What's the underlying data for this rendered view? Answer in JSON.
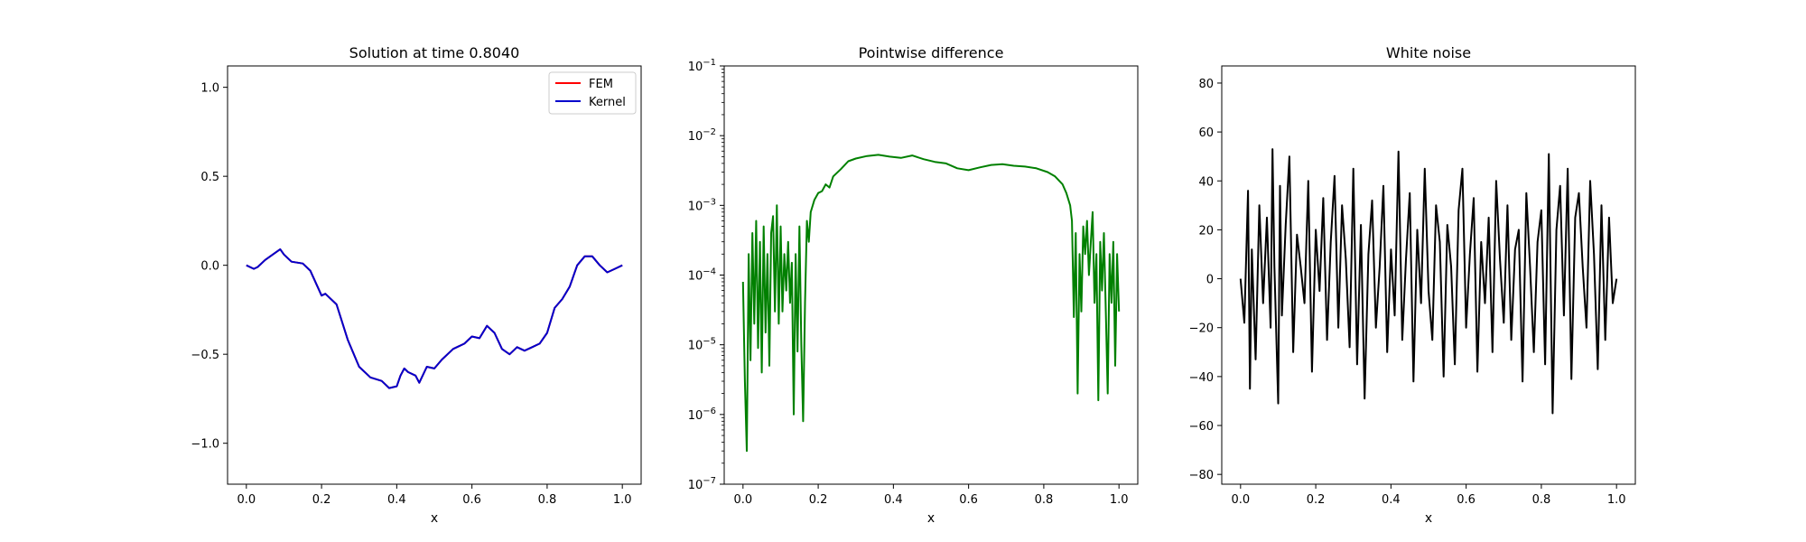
{
  "colors": {
    "fem": "#ff0000",
    "kernel": "#0000cc",
    "difference": "#008000",
    "noise": "#000000"
  },
  "chart_data": [
    {
      "type": "line",
      "title": "Solution at time 0.8040",
      "xlabel": "x",
      "ylabel": "",
      "xlim": [
        -0.05,
        1.05
      ],
      "ylim": [
        -1.23,
        1.12
      ],
      "xticks": [
        0.0,
        0.2,
        0.4,
        0.6,
        0.8,
        1.0
      ],
      "xtick_labels": [
        "0.0",
        "0.2",
        "0.4",
        "0.6",
        "0.8",
        "1.0"
      ],
      "yticks": [
        -1.0,
        -0.5,
        0.0,
        0.5,
        1.0
      ],
      "ytick_labels": [
        "−1.0",
        "−0.5",
        "0.0",
        "0.5",
        "1.0"
      ],
      "legend": {
        "location": "upper right",
        "entries": [
          "FEM",
          "Kernel"
        ]
      },
      "x": [
        0.0,
        0.02,
        0.03,
        0.05,
        0.07,
        0.09,
        0.1,
        0.12,
        0.15,
        0.17,
        0.2,
        0.21,
        0.24,
        0.27,
        0.3,
        0.33,
        0.36,
        0.38,
        0.4,
        0.41,
        0.42,
        0.43,
        0.45,
        0.46,
        0.48,
        0.5,
        0.52,
        0.55,
        0.58,
        0.6,
        0.62,
        0.64,
        0.66,
        0.68,
        0.7,
        0.72,
        0.74,
        0.76,
        0.78,
        0.8,
        0.82,
        0.84,
        0.86,
        0.88,
        0.9,
        0.92,
        0.94,
        0.96,
        0.98,
        1.0
      ],
      "series": [
        {
          "name": "FEM",
          "values": [
            0.0,
            -0.02,
            -0.01,
            0.03,
            0.06,
            0.09,
            0.06,
            0.02,
            0.01,
            -0.03,
            -0.17,
            -0.16,
            -0.22,
            -0.42,
            -0.57,
            -0.63,
            -0.65,
            -0.69,
            -0.68,
            -0.62,
            -0.58,
            -0.6,
            -0.62,
            -0.66,
            -0.57,
            -0.58,
            -0.53,
            -0.47,
            -0.44,
            -0.4,
            -0.41,
            -0.34,
            -0.38,
            -0.47,
            -0.5,
            -0.46,
            -0.48,
            -0.46,
            -0.44,
            -0.38,
            -0.24,
            -0.19,
            -0.12,
            0.0,
            0.05,
            0.05,
            0.0,
            -0.04,
            -0.02,
            0.0
          ]
        },
        {
          "name": "Kernel",
          "values": [
            0.0,
            -0.02,
            -0.01,
            0.03,
            0.06,
            0.09,
            0.06,
            0.02,
            0.01,
            -0.03,
            -0.17,
            -0.16,
            -0.22,
            -0.42,
            -0.57,
            -0.63,
            -0.65,
            -0.69,
            -0.68,
            -0.62,
            -0.58,
            -0.6,
            -0.62,
            -0.66,
            -0.57,
            -0.58,
            -0.53,
            -0.47,
            -0.44,
            -0.4,
            -0.41,
            -0.34,
            -0.38,
            -0.47,
            -0.5,
            -0.46,
            -0.48,
            -0.46,
            -0.44,
            -0.38,
            -0.24,
            -0.19,
            -0.12,
            0.0,
            0.05,
            0.05,
            0.0,
            -0.04,
            -0.02,
            0.0
          ]
        }
      ]
    },
    {
      "type": "line",
      "title": "Pointwise difference",
      "xlabel": "x",
      "ylabel": "",
      "yscale": "log",
      "xlim": [
        -0.05,
        1.05
      ],
      "ylim": [
        1e-07,
        0.1
      ],
      "xticks": [
        0.0,
        0.2,
        0.4,
        0.6,
        0.8,
        1.0
      ],
      "xtick_labels": [
        "0.0",
        "0.2",
        "0.4",
        "0.6",
        "0.8",
        "1.0"
      ],
      "yticks": [
        1e-07,
        1e-06,
        1e-05,
        0.0001,
        0.001,
        0.01,
        0.1
      ],
      "ytick_bases": [
        "10",
        "10",
        "10",
        "10",
        "10",
        "10",
        "10"
      ],
      "ytick_exps": [
        "−7",
        "−6",
        "−5",
        "−4",
        "−3",
        "−2",
        "−1"
      ],
      "series": [
        {
          "x": [
            0.0,
            0.005,
            0.01,
            0.015,
            0.02,
            0.025,
            0.03,
            0.035,
            0.04,
            0.045,
            0.05,
            0.055,
            0.06,
            0.065,
            0.07,
            0.075,
            0.08,
            0.085,
            0.09,
            0.095,
            0.1,
            0.105,
            0.11,
            0.115,
            0.12,
            0.125,
            0.13,
            0.135,
            0.14,
            0.145,
            0.15,
            0.155,
            0.16,
            0.165,
            0.17,
            0.175,
            0.18,
            0.19,
            0.2,
            0.21,
            0.22,
            0.23,
            0.24,
            0.26,
            0.28,
            0.3,
            0.33,
            0.36,
            0.39,
            0.42,
            0.45,
            0.48,
            0.51,
            0.54,
            0.57,
            0.6,
            0.63,
            0.66,
            0.69,
            0.72,
            0.75,
            0.78,
            0.81,
            0.83,
            0.85,
            0.86,
            0.87,
            0.875,
            0.88,
            0.885,
            0.89,
            0.895,
            0.9,
            0.905,
            0.91,
            0.915,
            0.92,
            0.925,
            0.93,
            0.935,
            0.94,
            0.945,
            0.95,
            0.955,
            0.96,
            0.965,
            0.97,
            0.975,
            0.98,
            0.985,
            0.99,
            0.995,
            1.0
          ],
          "values": [
            8e-05,
            3e-06,
            3e-07,
            0.0002,
            6e-06,
            0.0004,
            2e-05,
            0.0006,
            9e-06,
            0.0003,
            4e-06,
            0.0005,
            1.5e-05,
            0.0002,
            5e-06,
            0.0004,
            0.0007,
            3e-05,
            0.001,
            2e-05,
            0.0005,
            3e-05,
            0.0002,
            6e-05,
            0.0003,
            4e-05,
            0.00015,
            1e-06,
            0.0002,
            8e-06,
            0.0005,
            1e-05,
            8e-07,
            4e-05,
            0.0006,
            0.0003,
            0.0008,
            0.0012,
            0.0015,
            0.0016,
            0.002,
            0.0018,
            0.0026,
            0.0033,
            0.0043,
            0.0047,
            0.0051,
            0.0053,
            0.005,
            0.0048,
            0.0052,
            0.0046,
            0.0042,
            0.004,
            0.0034,
            0.0032,
            0.0035,
            0.0038,
            0.0039,
            0.0037,
            0.0036,
            0.0034,
            0.003,
            0.0026,
            0.002,
            0.0015,
            0.001,
            0.0006,
            2.5e-05,
            0.0004,
            2e-06,
            0.0002,
            3e-05,
            0.0005,
            0.0002,
            0.0006,
            0.0001,
            0.0003,
            0.0008,
            4e-05,
            0.0002,
            1.6e-06,
            0.0003,
            6e-05,
            0.0004,
            3e-05,
            2e-06,
            0.0002,
            4e-05,
            0.0003,
            5e-06,
            0.0002,
            3e-05
          ]
        }
      ]
    },
    {
      "type": "line",
      "title": "White noise",
      "xlabel": "x",
      "ylabel": "",
      "xlim": [
        -0.05,
        1.05
      ],
      "ylim": [
        -84,
        87
      ],
      "xticks": [
        0.0,
        0.2,
        0.4,
        0.6,
        0.8,
        1.0
      ],
      "xtick_labels": [
        "0.0",
        "0.2",
        "0.4",
        "0.6",
        "0.8",
        "1.0"
      ],
      "yticks": [
        -80,
        -60,
        -40,
        -20,
        0,
        20,
        40,
        60,
        80
      ],
      "ytick_labels": [
        "−80",
        "−60",
        "−40",
        "−20",
        "0",
        "20",
        "40",
        "60",
        "80"
      ],
      "series": [
        {
          "x": [
            0.0,
            0.01,
            0.02,
            0.025,
            0.03,
            0.04,
            0.05,
            0.06,
            0.07,
            0.08,
            0.085,
            0.09,
            0.1,
            0.105,
            0.11,
            0.12,
            0.13,
            0.14,
            0.15,
            0.16,
            0.17,
            0.18,
            0.19,
            0.2,
            0.21,
            0.22,
            0.23,
            0.24,
            0.25,
            0.26,
            0.27,
            0.28,
            0.29,
            0.3,
            0.31,
            0.32,
            0.33,
            0.34,
            0.35,
            0.36,
            0.37,
            0.38,
            0.39,
            0.4,
            0.41,
            0.42,
            0.43,
            0.44,
            0.45,
            0.46,
            0.47,
            0.48,
            0.49,
            0.5,
            0.51,
            0.52,
            0.53,
            0.54,
            0.55,
            0.56,
            0.57,
            0.58,
            0.59,
            0.6,
            0.61,
            0.62,
            0.63,
            0.64,
            0.65,
            0.66,
            0.67,
            0.68,
            0.69,
            0.7,
            0.71,
            0.72,
            0.73,
            0.74,
            0.75,
            0.76,
            0.77,
            0.78,
            0.79,
            0.8,
            0.81,
            0.82,
            0.83,
            0.84,
            0.85,
            0.86,
            0.87,
            0.88,
            0.89,
            0.9,
            0.91,
            0.92,
            0.93,
            0.94,
            0.95,
            0.96,
            0.97,
            0.98,
            0.99,
            1.0
          ],
          "values": [
            0,
            -18,
            36,
            -45,
            12,
            -33,
            30,
            -10,
            25,
            -20,
            53,
            5,
            -51,
            38,
            -15,
            22,
            50,
            -30,
            18,
            5,
            -10,
            40,
            -38,
            20,
            -5,
            33,
            -25,
            15,
            42,
            -20,
            30,
            8,
            -28,
            45,
            -35,
            22,
            -49,
            10,
            32,
            -20,
            5,
            38,
            -30,
            12,
            -15,
            52,
            -25,
            8,
            35,
            -42,
            20,
            -10,
            45,
            -5,
            -25,
            30,
            15,
            -40,
            22,
            5,
            -35,
            28,
            45,
            -20,
            10,
            33,
            -38,
            15,
            -10,
            25,
            -30,
            40,
            8,
            -18,
            30,
            -25,
            12,
            20,
            -42,
            35,
            5,
            -30,
            15,
            28,
            -35,
            51,
            -55,
            20,
            38,
            -15,
            45,
            -41,
            25,
            35,
            5,
            -20,
            40,
            10,
            -37,
            30,
            -25,
            25,
            -10,
            0
          ]
        }
      ]
    }
  ]
}
